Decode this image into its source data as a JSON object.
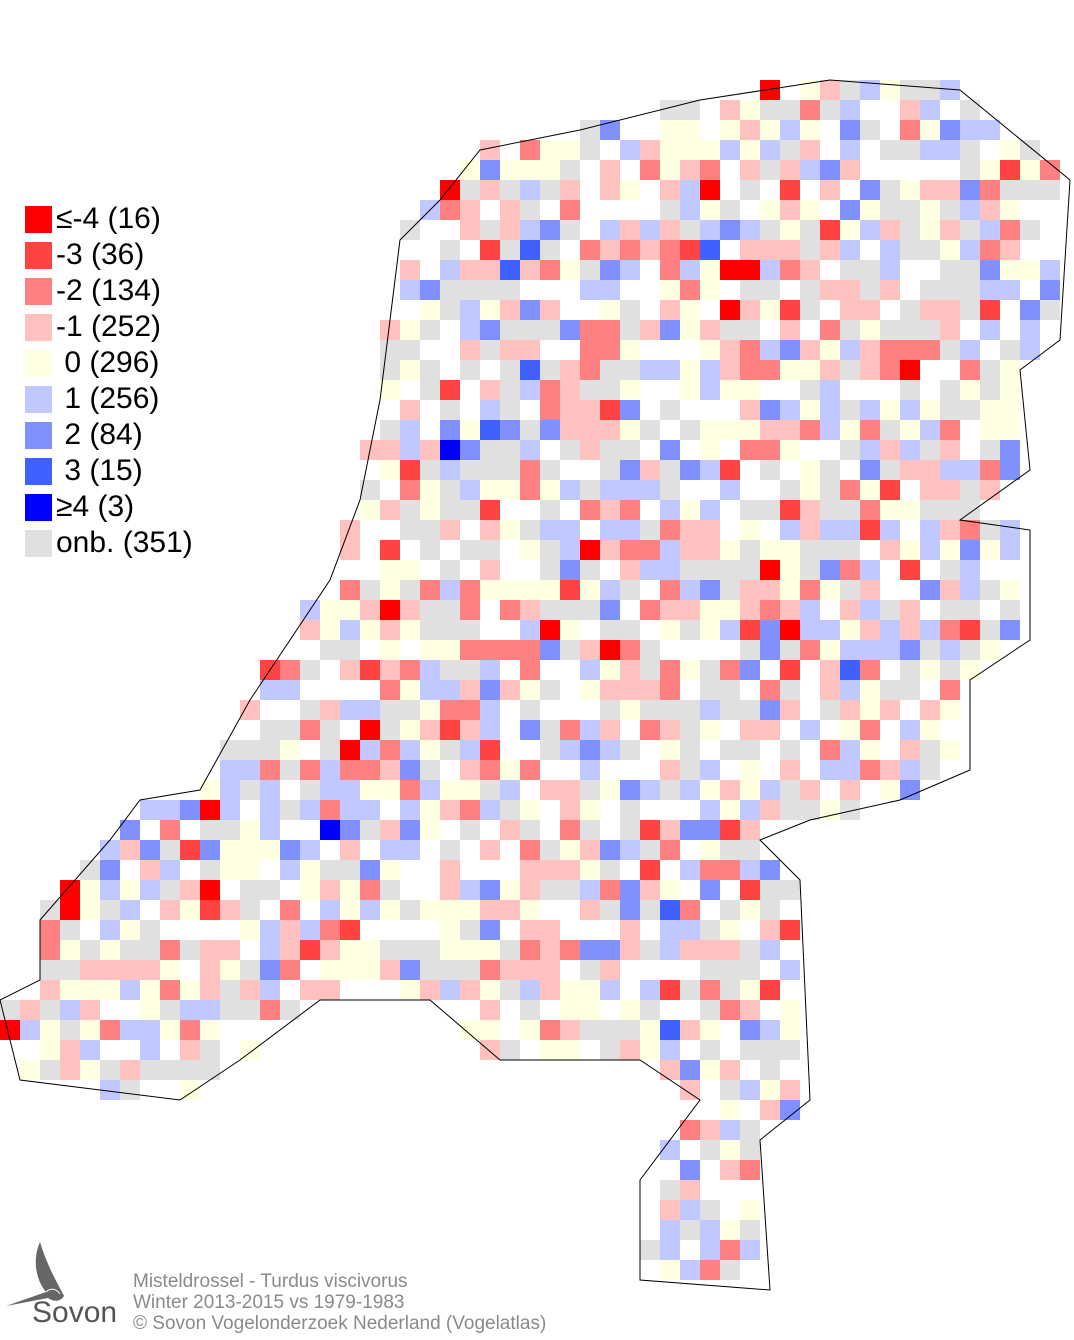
{
  "legend": [
    {
      "label": "≤-4 (16)",
      "value": -4,
      "count": 16,
      "color": "#ff0000"
    },
    {
      "label": "-3 (36)",
      "value": -3,
      "count": 36,
      "color": "#ff4242"
    },
    {
      "label": "-2 (134)",
      "value": -2,
      "count": 134,
      "color": "#ff8080"
    },
    {
      "label": "-1 (252)",
      "value": -1,
      "count": 252,
      "color": "#ffc0c0"
    },
    {
      "label": " 0 (296)",
      "value": 0,
      "count": 296,
      "color": "#ffffe2"
    },
    {
      "label": " 1 (256)",
      "value": 1,
      "count": 256,
      "color": "#c0c8ff"
    },
    {
      "label": " 2 (84)",
      "value": 2,
      "count": 84,
      "color": "#8090ff"
    },
    {
      "label": " 3 (15)",
      "value": 3,
      "count": 15,
      "color": "#4060ff"
    },
    {
      "label": "≥4 (3)",
      "value": 4,
      "count": 3,
      "color": "#0000ff"
    },
    {
      "label": "onb. (351)",
      "value": "onb.",
      "count": 351,
      "color": "#e0e0e0"
    }
  ],
  "footer": {
    "species": "Misteldrossel - Turdus viscivorus",
    "period": "Winter 2013-2015 vs 1979-1983",
    "copyright": "© Sovon Vogelonderzoek Nederland (Vogelatlas)"
  },
  "logo": {
    "text": "Sovon",
    "icon": "swallow-logo-icon"
  }
}
